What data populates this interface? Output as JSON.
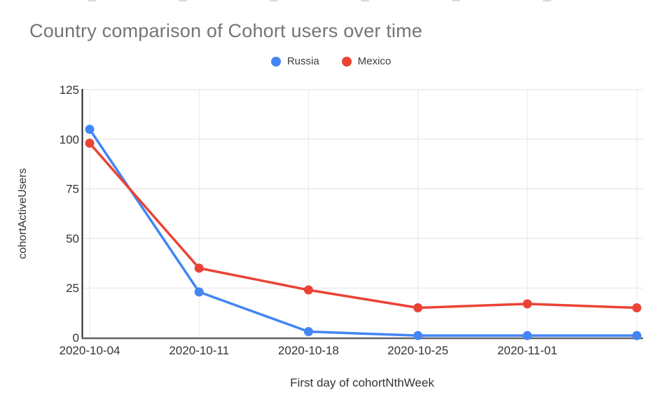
{
  "chart_data": {
    "type": "line",
    "title": "Country comparison of Cohort users over time",
    "xlabel": "First day of cohortNthWeek",
    "ylabel": "cohortActiveUsers",
    "x_tick_labels": [
      "2020-10-04",
      "2020-10-11",
      "2020-10-18",
      "2020-10-25",
      "2020-11-01"
    ],
    "num_points": 6,
    "series": [
      {
        "name": "Russia",
        "color": "#4285f4",
        "values": [
          105,
          23,
          3,
          1,
          1,
          1
        ]
      },
      {
        "name": "Mexico",
        "color": "#ea4335",
        "values": [
          98,
          35,
          24,
          15,
          17,
          15
        ]
      }
    ],
    "yticks": [
      0,
      25,
      50,
      75,
      100,
      125
    ],
    "ylim": [
      0,
      125
    ],
    "grid": true,
    "legend_position": "top",
    "colors": {
      "title_text": "#757575",
      "tick_text": "#333333",
      "gridline": "#e3e3e3",
      "y_axis_line": "#212121",
      "x_axis_line": "#5f6368"
    }
  }
}
